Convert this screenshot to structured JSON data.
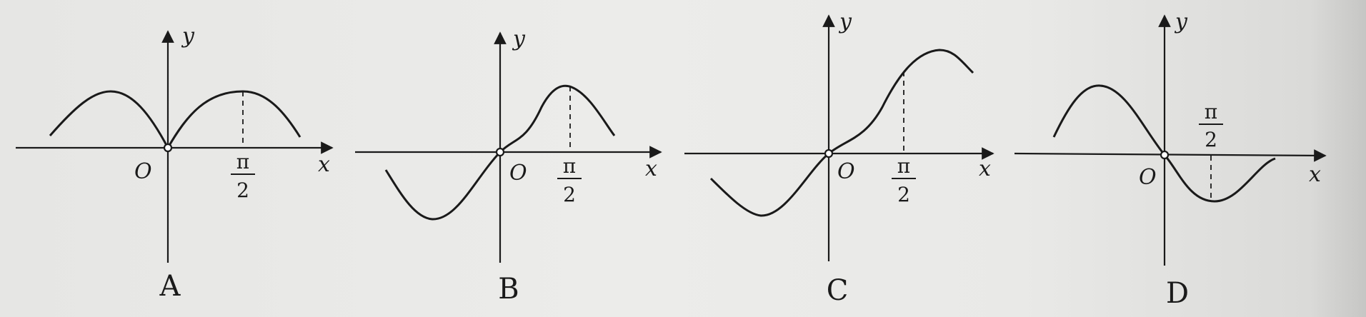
{
  "axis_labels": {
    "x": "x",
    "y": "y",
    "origin": "O"
  },
  "tick": {
    "pi": "π",
    "two": "2"
  },
  "panels": [
    {
      "id": "A",
      "label": "A"
    },
    {
      "id": "B",
      "label": "B"
    },
    {
      "id": "C",
      "label": "C"
    },
    {
      "id": "D",
      "label": "D"
    }
  ]
}
